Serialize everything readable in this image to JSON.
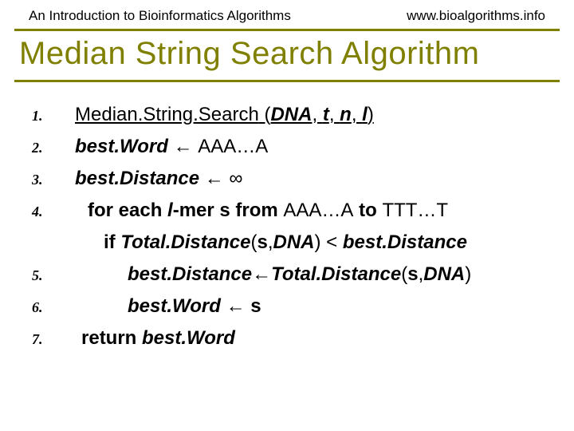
{
  "header": {
    "left": "An Introduction to Bioinformatics Algorithms",
    "right": "www.bioalgorithms.info"
  },
  "title": "Median String Search Algorithm",
  "colors": {
    "accent": "#808000",
    "text": "#000000",
    "background": "#ffffff"
  },
  "typography": {
    "header_fontsize_pt": 13,
    "title_fontsize_pt": 30,
    "body_fontsize_pt": 18,
    "number_fontsize_pt": 14,
    "title_font": "Trebuchet MS",
    "body_font": "Arial"
  },
  "algorithm": {
    "lines": [
      {
        "n": "1.",
        "indent": 0
      },
      {
        "n": "2.",
        "indent": 0
      },
      {
        "n": "3.",
        "indent": 0
      },
      {
        "n": "4.",
        "indent": 1
      },
      {
        "n": "",
        "indent": 2
      },
      {
        "n": "5.",
        "indent": 3
      },
      {
        "n": "6.",
        "indent": 3
      },
      {
        "n": "7.",
        "indent": 1
      }
    ],
    "tokens": {
      "fn_name": "Median.String.Search",
      "fn_open": " (",
      "fn_close": ")",
      "arg_dna": "DNA",
      "arg_t": "t",
      "arg_n": "n",
      "arg_l": "l",
      "sep": ", ",
      "bestWord": "best.Word",
      "bestDistance": "best.Distance",
      "arrow": " ← ",
      "aaa": "AAA…A",
      "ttt": "TTT…T",
      "infinity": "∞",
      "for_each": "for each ",
      "l_mer": "l",
      "mer_tail": "-mer s from ",
      "to": " to ",
      "if": "if ",
      "totalDistance": "Total.Distance",
      "s": "s",
      "comma": ",",
      "lt": " < ",
      "return": "return ",
      "space": " "
    }
  }
}
